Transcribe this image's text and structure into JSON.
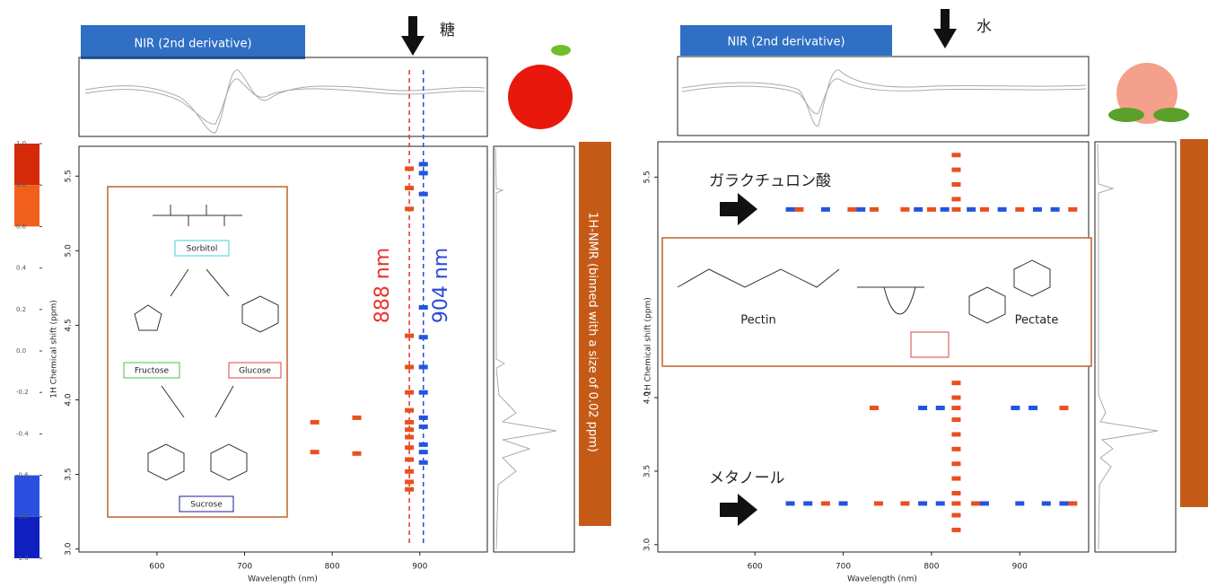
{
  "chart_data": [
    {
      "type": "scatter",
      "title": "NIR (2nd derivative)",
      "annotation": "糖",
      "xlabel": "Wavelength (nm)",
      "ylabel": "1H Chemical shift (ppm)",
      "side_label": "1H-NMR (binned with a size of 0.02 ppm)",
      "xlim": [
        511,
        977
      ],
      "ylim": [
        2.98,
        5.7
      ],
      "xticks": [
        600,
        700,
        800,
        900
      ],
      "yticks": [
        {
          "value": 3,
          "label": "3.0"
        },
        3.5,
        {
          "value": 4,
          "label": "4.0"
        },
        4.5,
        {
          "value": 5,
          "label": "5.0"
        },
        5.5
      ],
      "reference_lines": [
        {
          "value": 888,
          "label": "888 nm",
          "color": "#e8302a"
        },
        {
          "value": 904,
          "label": "904 nm",
          "color": "#2a4ad8"
        }
      ],
      "structures": [
        "Sorbitol",
        "Fructose",
        "Glucose",
        "Sucrose"
      ],
      "series": [
        {
          "color": "#e8501f",
          "x": [
            888,
            888,
            888,
            888,
            888,
            888,
            888,
            888,
            888,
            888,
            888,
            888,
            888,
            888,
            888,
            780,
            780,
            828,
            828
          ],
          "y": [
            5.55,
            5.42,
            5.28,
            4.43,
            4.22,
            4.05,
            3.93,
            3.85,
            3.8,
            3.75,
            3.68,
            3.6,
            3.52,
            3.45,
            3.4,
            3.85,
            3.65,
            3.88,
            3.64
          ]
        },
        {
          "color": "#2255dd",
          "x": [
            904,
            904,
            904,
            904,
            904,
            904,
            904,
            904,
            904,
            904,
            904,
            904
          ],
          "y": [
            5.58,
            5.52,
            5.38,
            4.62,
            4.42,
            4.22,
            4.05,
            3.88,
            3.82,
            3.7,
            3.65,
            3.58
          ]
        }
      ],
      "colorbar": {
        "lim": [
          -1,
          1
        ],
        "ticks": [
          {
            "value": 1,
            "label": "1.0"
          },
          0.8,
          0.6,
          0.4,
          0.2,
          {
            "value": 0,
            "label": "0.0"
          },
          -0.2,
          -0.4,
          -0.6,
          -0.8,
          {
            "value": -1,
            "label": "-1.0"
          }
        ],
        "colors": [
          "#d42a0a",
          "#f0601a",
          "#ffffff",
          "#ffffff",
          "#ffffff",
          "#ffffff",
          "#ffffff",
          "#ffffff",
          "#2b50e0",
          "#1020c0"
        ]
      }
    },
    {
      "type": "scatter",
      "title": "NIR (2nd derivative)",
      "annotation": "水",
      "xlabel": "Wavelength (nm)",
      "ylabel": "1H Chemical shift (ppm)",
      "xlim": [
        490,
        978
      ],
      "ylim": [
        2.95,
        5.74
      ],
      "xticks": [
        600,
        700,
        800,
        900
      ],
      "yticks": [
        {
          "value": 3,
          "label": "3.0"
        },
        3.5,
        {
          "value": 4,
          "label": "4.0"
        },
        5.5
      ],
      "callouts": [
        "ガラクチュロン酸",
        "メタノール"
      ],
      "structures": [
        "Pectin",
        "Pectate"
      ],
      "series": [
        {
          "color": "#e8501f",
          "x": [
            828,
            828,
            828,
            828,
            828,
            828,
            828,
            828,
            828,
            828,
            828,
            828,
            828,
            828,
            828,
            828,
            828,
            650,
            710,
            735,
            770,
            800,
            860,
            900,
            960,
            735,
            950,
            680,
            740,
            770,
            850,
            960
          ],
          "y": [
            5.65,
            5.55,
            5.45,
            5.35,
            5.28,
            4.1,
            4.0,
            3.93,
            3.85,
            3.75,
            3.65,
            3.55,
            3.45,
            3.35,
            3.28,
            3.2,
            3.1,
            5.28,
            5.28,
            5.28,
            5.28,
            5.28,
            5.28,
            5.28,
            5.28,
            3.93,
            3.93,
            3.28,
            3.28,
            3.28,
            3.28,
            3.28
          ]
        },
        {
          "color": "#2255dd",
          "x": [
            640,
            680,
            720,
            785,
            815,
            845,
            880,
            920,
            940,
            790,
            810,
            895,
            915,
            640,
            660,
            700,
            790,
            810,
            860,
            900,
            930,
            950
          ],
          "y": [
            5.28,
            5.28,
            5.28,
            5.28,
            5.28,
            5.28,
            5.28,
            5.28,
            5.28,
            3.93,
            3.93,
            3.93,
            3.93,
            3.28,
            3.28,
            3.28,
            3.28,
            3.28,
            3.28,
            3.28,
            3.28,
            3.28
          ]
        }
      ]
    }
  ]
}
